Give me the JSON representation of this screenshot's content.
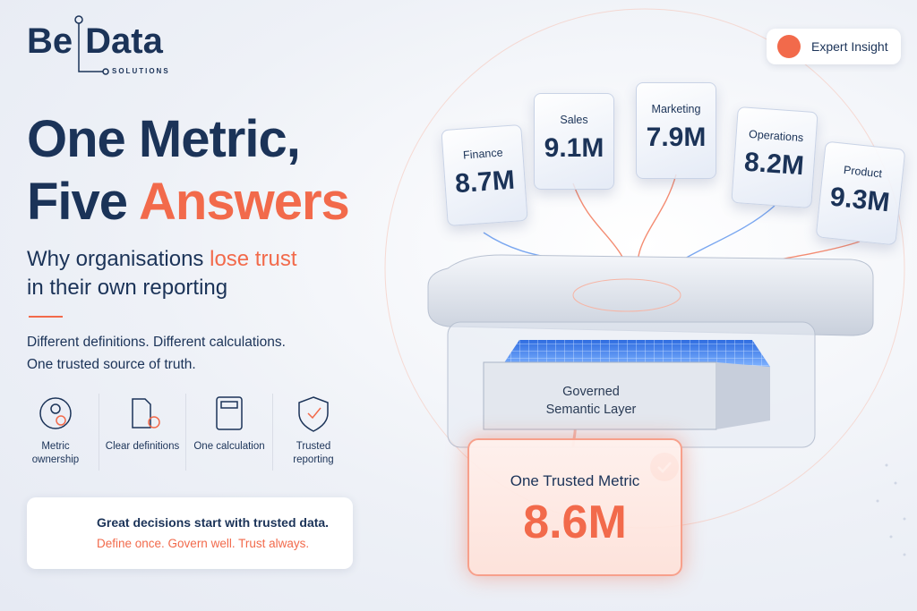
{
  "logo": {
    "be": "Be",
    "data": "Data",
    "sub": "SOLUTIONS"
  },
  "badge": "Expert Insight",
  "headline": {
    "line1": "One Metric,",
    "line2a": "Five",
    "line2b": "Answers"
  },
  "subtitle": {
    "a": "Why organisations",
    "highlight": "lose trust",
    "b": "in their own reporting"
  },
  "tagline": [
    "Different definitions. Different calculations.",
    "One trusted source of truth."
  ],
  "features": [
    "Metric ownership",
    "Clear definitions",
    "One calculation",
    "Trusted reporting"
  ],
  "callout": {
    "line1": "Great decisions start with trusted data.",
    "line2": "Define once. Govern well. Trust always."
  },
  "cards": [
    {
      "label": "Finance",
      "value": "8.7M"
    },
    {
      "label": "Sales",
      "value": "9.1M"
    },
    {
      "label": "Marketing",
      "value": "7.9M"
    },
    {
      "label": "Operations",
      "value": "8.2M"
    },
    {
      "label": "Product",
      "value": "9.3M"
    }
  ],
  "layer": {
    "line1": "Governed",
    "line2": "Semantic Layer"
  },
  "result": {
    "label": "One Trusted Metric",
    "value": "8.6M"
  }
}
